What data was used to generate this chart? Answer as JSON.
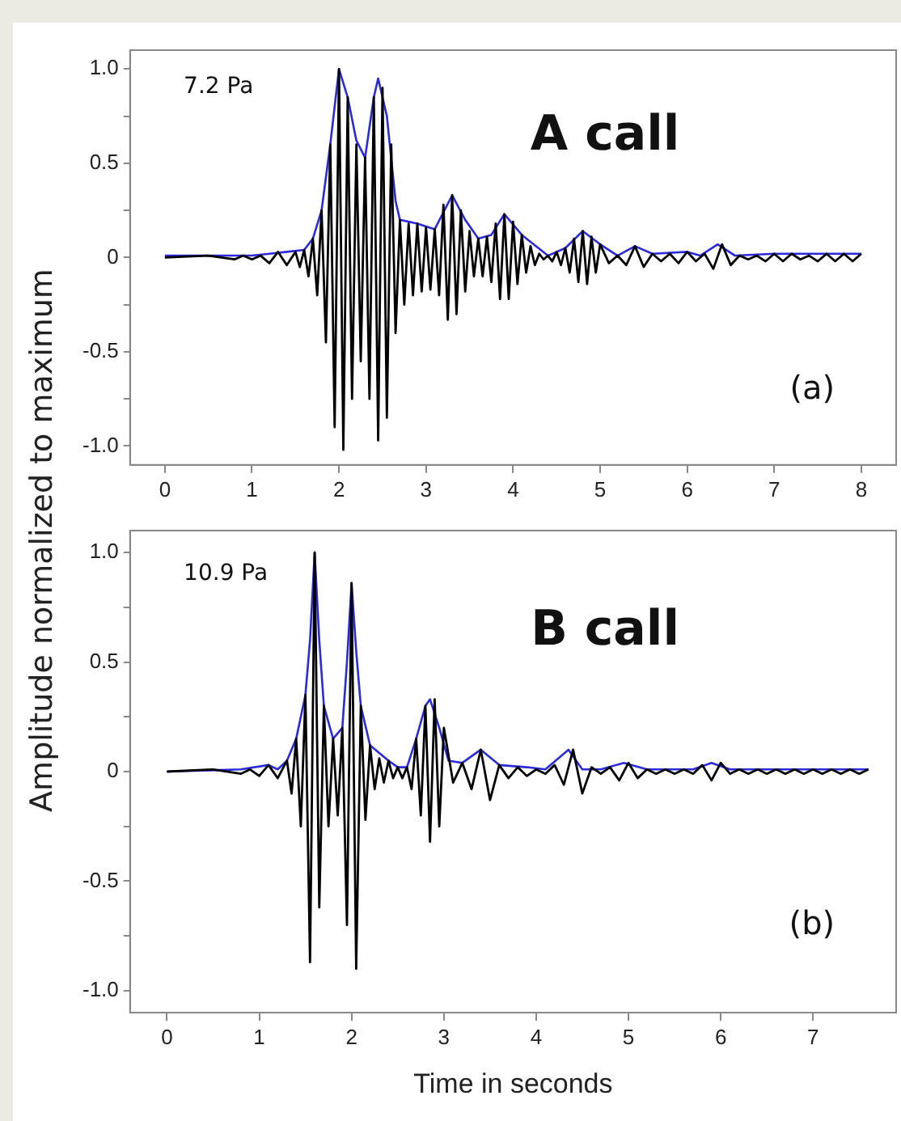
{
  "chart_data": [
    {
      "type": "line",
      "ylabel": "Amplitude normalized to maximum",
      "annotations": [
        "7.2 Pa",
        "A call",
        "(a)"
      ],
      "xlim": [
        -0.4,
        8.4
      ],
      "xticks": [
        0,
        1,
        2,
        3,
        4,
        5,
        6,
        7,
        8
      ],
      "ylim": [
        -1.1,
        1.1
      ],
      "yticks": [
        {
          "value": -1,
          "label": "-1.0"
        },
        {
          "value": -0.75,
          "label": null
        },
        {
          "value": -0.5,
          "label": "-0.5"
        },
        {
          "value": -0.25,
          "label": null
        },
        0,
        {
          "value": 0.25,
          "label": null
        },
        {
          "value": 0.5,
          "label": "0.5"
        },
        {
          "value": 0.75,
          "label": null
        },
        {
          "value": 1,
          "label": "1.0"
        }
      ],
      "legend": false,
      "marker": "none",
      "line_style": "solid",
      "series": [
        {
          "color": "#000000",
          "x": [
            0,
            0.5,
            0.8,
            0.9,
            1.0,
            1.1,
            1.2,
            1.3,
            1.4,
            1.5,
            1.55,
            1.6,
            1.65,
            1.7,
            1.75,
            1.8,
            1.85,
            1.9,
            1.95,
            2.0,
            2.05,
            2.1,
            2.15,
            2.2,
            2.25,
            2.3,
            2.35,
            2.4,
            2.45,
            2.5,
            2.55,
            2.6,
            2.65,
            2.7,
            2.75,
            2.8,
            2.85,
            2.9,
            2.95,
            3.0,
            3.05,
            3.1,
            3.15,
            3.2,
            3.25,
            3.3,
            3.35,
            3.4,
            3.45,
            3.5,
            3.55,
            3.6,
            3.65,
            3.7,
            3.75,
            3.8,
            3.85,
            3.9,
            3.95,
            4.0,
            4.05,
            4.1,
            4.15,
            4.2,
            4.25,
            4.3,
            4.35,
            4.4,
            4.45,
            4.5,
            4.55,
            4.6,
            4.65,
            4.7,
            4.75,
            4.8,
            4.85,
            4.9,
            4.95,
            5.0,
            5.1,
            5.2,
            5.3,
            5.4,
            5.5,
            5.6,
            5.7,
            5.8,
            5.9,
            6.0,
            6.1,
            6.2,
            6.3,
            6.4,
            6.5,
            6.6,
            6.7,
            6.8,
            6.9,
            7.0,
            7.1,
            7.2,
            7.3,
            7.4,
            7.5,
            7.6,
            7.7,
            7.8,
            7.9,
            8.0
          ],
          "values": [
            0,
            0.01,
            -0.01,
            0.01,
            -0.01,
            0.01,
            -0.03,
            0.03,
            -0.04,
            0.03,
            -0.05,
            0.04,
            -0.1,
            0.1,
            -0.2,
            0.25,
            -0.45,
            0.6,
            -0.9,
            1.0,
            -1.02,
            0.85,
            -0.75,
            0.6,
            -0.55,
            0.53,
            -0.75,
            0.85,
            -0.97,
            0.9,
            -0.85,
            0.6,
            -0.4,
            0.2,
            -0.25,
            0.18,
            -0.2,
            0.18,
            -0.18,
            0.16,
            -0.17,
            0.15,
            -0.2,
            0.28,
            -0.33,
            0.33,
            -0.3,
            0.25,
            -0.18,
            0.14,
            -0.1,
            0.1,
            -0.1,
            0.11,
            -0.13,
            0.18,
            -0.22,
            0.23,
            -0.22,
            0.19,
            -0.14,
            0.12,
            -0.08,
            0.06,
            -0.04,
            0.02,
            -0.01,
            0.01,
            -0.02,
            0.03,
            -0.04,
            0.05,
            -0.08,
            0.1,
            -0.13,
            0.14,
            -0.14,
            0.11,
            -0.08,
            0.07,
            -0.03,
            0.01,
            -0.04,
            0.06,
            -0.05,
            0.02,
            -0.02,
            0.02,
            -0.03,
            0.03,
            -0.02,
            0.02,
            -0.06,
            0.07,
            -0.04,
            0.01,
            -0.01,
            0.01,
            -0.02,
            0.02,
            -0.02,
            0.02,
            -0.01,
            0.01,
            -0.02,
            0.02,
            -0.02,
            0.02,
            -0.02,
            0.02
          ]
        },
        {
          "color": "#2a2ad8",
          "x": [
            0,
            1.0,
            1.2,
            1.4,
            1.6,
            1.7,
            1.8,
            1.9,
            2.0,
            2.1,
            2.2,
            2.3,
            2.4,
            2.45,
            2.55,
            2.65,
            2.7,
            2.9,
            3.1,
            3.3,
            3.45,
            3.6,
            3.75,
            3.9,
            4.1,
            4.4,
            4.6,
            4.8,
            5.0,
            5.2,
            5.4,
            5.6,
            6.0,
            6.15,
            6.35,
            6.55,
            7.0,
            8.0
          ],
          "values": [
            0.01,
            0.01,
            0.02,
            0.03,
            0.04,
            0.1,
            0.25,
            0.6,
            1.0,
            0.85,
            0.62,
            0.53,
            0.85,
            0.95,
            0.75,
            0.3,
            0.2,
            0.18,
            0.15,
            0.33,
            0.2,
            0.1,
            0.12,
            0.23,
            0.12,
            0.01,
            0.05,
            0.14,
            0.07,
            0.01,
            0.06,
            0.02,
            0.03,
            0.01,
            0.07,
            0.01,
            0.02,
            0.02
          ]
        }
      ]
    },
    {
      "type": "line",
      "xlabel": "Time in seconds",
      "annotations": [
        "10.9 Pa",
        "B call",
        "(b)"
      ],
      "xlim": [
        -0.4,
        7.9
      ],
      "xticks": [
        0,
        1,
        2,
        3,
        4,
        5,
        6,
        7
      ],
      "ylim": [
        -1.1,
        1.1
      ],
      "yticks": [
        {
          "value": -1,
          "label": "-1.0"
        },
        {
          "value": -0.75,
          "label": null
        },
        {
          "value": -0.5,
          "label": "-0.5"
        },
        {
          "value": -0.25,
          "label": null
        },
        0,
        {
          "value": 0.25,
          "label": null
        },
        {
          "value": 0.5,
          "label": "0.5"
        },
        {
          "value": 0.75,
          "label": null
        },
        {
          "value": 1,
          "label": "1.0"
        }
      ],
      "legend": false,
      "marker": "none",
      "line_style": "solid",
      "series": [
        {
          "color": "#000000",
          "x": [
            0,
            0.5,
            0.8,
            0.9,
            1.0,
            1.1,
            1.2,
            1.3,
            1.35,
            1.4,
            1.45,
            1.5,
            1.55,
            1.6,
            1.65,
            1.7,
            1.75,
            1.8,
            1.85,
            1.9,
            1.95,
            2.0,
            2.05,
            2.1,
            2.15,
            2.2,
            2.25,
            2.3,
            2.35,
            2.4,
            2.45,
            2.5,
            2.55,
            2.6,
            2.65,
            2.7,
            2.75,
            2.8,
            2.85,
            2.9,
            2.95,
            3.0,
            3.1,
            3.2,
            3.3,
            3.4,
            3.5,
            3.6,
            3.7,
            3.8,
            3.9,
            4.0,
            4.1,
            4.2,
            4.3,
            4.4,
            4.5,
            4.6,
            4.7,
            4.8,
            4.9,
            5.0,
            5.1,
            5.2,
            5.3,
            5.4,
            5.5,
            5.6,
            5.7,
            5.8,
            5.9,
            6.0,
            6.1,
            6.2,
            6.3,
            6.4,
            6.5,
            6.6,
            6.7,
            6.8,
            6.9,
            7.0,
            7.1,
            7.2,
            7.3,
            7.4,
            7.5,
            7.6
          ],
          "values": [
            0,
            0.01,
            -0.01,
            0.01,
            -0.02,
            0.03,
            -0.03,
            0.05,
            -0.1,
            0.15,
            -0.25,
            0.35,
            -0.87,
            1.0,
            -0.62,
            0.3,
            -0.25,
            0.15,
            -0.2,
            0.2,
            -0.7,
            0.86,
            -0.9,
            0.3,
            -0.22,
            0.12,
            -0.08,
            0.06,
            -0.05,
            0.05,
            -0.03,
            0.02,
            -0.03,
            0.02,
            -0.08,
            0.15,
            -0.2,
            0.3,
            -0.32,
            0.33,
            -0.25,
            0.2,
            -0.05,
            0.04,
            -0.08,
            0.1,
            -0.13,
            0.03,
            -0.03,
            0.02,
            -0.02,
            0.01,
            -0.01,
            0.03,
            -0.06,
            0.1,
            -0.1,
            0.02,
            -0.01,
            0.02,
            -0.04,
            0.04,
            -0.03,
            0.01,
            -0.01,
            0.01,
            -0.01,
            0.01,
            -0.01,
            0.03,
            -0.04,
            0.04,
            -0.01,
            0.01,
            -0.01,
            0.01,
            -0.01,
            0.01,
            -0.01,
            0.01,
            -0.01,
            0.01,
            -0.01,
            0.01,
            -0.01,
            0.01,
            -0.01,
            0.01
          ]
        },
        {
          "color": "#2a2ad8",
          "x": [
            0,
            0.8,
            1.1,
            1.2,
            1.3,
            1.4,
            1.5,
            1.55,
            1.6,
            1.65,
            1.7,
            1.8,
            1.9,
            1.95,
            2.0,
            2.05,
            2.1,
            2.2,
            2.4,
            2.5,
            2.6,
            2.7,
            2.8,
            2.85,
            2.95,
            3.05,
            3.2,
            3.4,
            3.6,
            3.9,
            4.1,
            4.35,
            4.5,
            4.7,
            4.95,
            5.2,
            5.7,
            5.9,
            6.1,
            6.5,
            7.6
          ],
          "values": [
            0,
            0.01,
            0.03,
            0.01,
            0.05,
            0.15,
            0.35,
            0.6,
            1.0,
            0.6,
            0.3,
            0.15,
            0.2,
            0.5,
            0.86,
            0.55,
            0.3,
            0.12,
            0.05,
            0.02,
            0.02,
            0.15,
            0.3,
            0.33,
            0.2,
            0.05,
            0.04,
            0.1,
            0.03,
            0.02,
            0.01,
            0.1,
            0.01,
            0.01,
            0.04,
            0.01,
            0.01,
            0.04,
            0.01,
            0.01,
            0.01
          ]
        }
      ]
    }
  ]
}
